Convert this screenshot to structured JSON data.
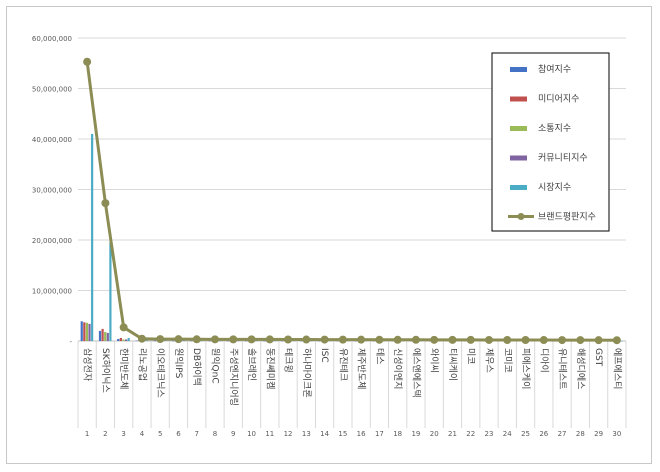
{
  "chart_data": {
    "type": "bar",
    "title": "",
    "xlabel": "",
    "ylabel": "",
    "ylim": [
      0,
      60000000
    ],
    "yticks": [
      "-",
      "10,000,000",
      "20,000,000",
      "30,000,000",
      "40,000,000",
      "50,000,000",
      "60,000,000"
    ],
    "grid": true,
    "legend_position": "top-right",
    "categories": [
      "삼성전자",
      "SK하이닉스",
      "한미반도체",
      "리노공업",
      "이오테크닉스",
      "원익IPS",
      "DB하이텍",
      "원익QnC",
      "주성엔지니어링",
      "솔브레인",
      "동진쎄미켐",
      "테크윙",
      "하나마이크론",
      "ISC",
      "유진테크",
      "제주반도체",
      "테스",
      "신성이엔지",
      "에스앤에스텍",
      "와이씨",
      "티씨케이",
      "미코",
      "제우스",
      "코미코",
      "피에스케이",
      "디아이",
      "유니테스트",
      "해성디에스",
      "GST",
      "에프에스티"
    ],
    "ranks": [
      "1",
      "2",
      "3",
      "4",
      "5",
      "6",
      "7",
      "8",
      "9",
      "10",
      "11",
      "12",
      "13",
      "14",
      "15",
      "16",
      "17",
      "18",
      "19",
      "20",
      "21",
      "22",
      "23",
      "24",
      "25",
      "26",
      "27",
      "28",
      "29",
      "30"
    ],
    "series": [
      {
        "name": "참여지수",
        "color": "#4472C4",
        "kind": "bar",
        "values": [
          3900000,
          2000000,
          400000,
          80000,
          60000,
          50000,
          50000,
          40000,
          40000,
          40000,
          40000,
          40000,
          40000,
          40000,
          40000,
          40000,
          40000,
          40000,
          40000,
          40000,
          40000,
          40000,
          40000,
          40000,
          40000,
          40000,
          40000,
          40000,
          40000,
          40000
        ]
      },
      {
        "name": "미디어지수",
        "color": "#C0504D",
        "kind": "bar",
        "values": [
          3700000,
          2400000,
          600000,
          120000,
          80000,
          70000,
          60000,
          50000,
          50000,
          50000,
          50000,
          50000,
          50000,
          50000,
          50000,
          50000,
          50000,
          50000,
          50000,
          50000,
          50000,
          50000,
          50000,
          50000,
          50000,
          50000,
          50000,
          50000,
          50000,
          50000
        ]
      },
      {
        "name": "소통지수",
        "color": "#9BBB59",
        "kind": "bar",
        "values": [
          3600000,
          1800000,
          300000,
          80000,
          50000,
          50000,
          40000,
          40000,
          40000,
          40000,
          40000,
          40000,
          40000,
          40000,
          40000,
          40000,
          40000,
          40000,
          40000,
          40000,
          40000,
          40000,
          40000,
          40000,
          40000,
          40000,
          40000,
          40000,
          40000,
          40000
        ]
      },
      {
        "name": "커뮤니티지수",
        "color": "#8064A2",
        "kind": "bar",
        "values": [
          3400000,
          1600000,
          300000,
          70000,
          40000,
          40000,
          40000,
          30000,
          30000,
          30000,
          30000,
          30000,
          30000,
          30000,
          30000,
          30000,
          30000,
          30000,
          30000,
          30000,
          30000,
          30000,
          30000,
          30000,
          30000,
          30000,
          30000,
          30000,
          30000,
          30000
        ]
      },
      {
        "name": "시장지수",
        "color": "#4BACC6",
        "kind": "bar",
        "values": [
          41000000,
          19500000,
          600000,
          150000,
          100000,
          80000,
          60000,
          60000,
          60000,
          60000,
          60000,
          50000,
          50000,
          50000,
          50000,
          50000,
          50000,
          50000,
          50000,
          50000,
          50000,
          50000,
          50000,
          50000,
          50000,
          50000,
          50000,
          50000,
          50000,
          50000
        ]
      },
      {
        "name": "브랜드평판지수",
        "color": "#8C8C55",
        "kind": "line",
        "values": [
          55300000,
          27300000,
          2700000,
          450000,
          380000,
          360000,
          340000,
          330000,
          320000,
          320000,
          310000,
          300000,
          290000,
          280000,
          270000,
          260000,
          250000,
          240000,
          240000,
          230000,
          220000,
          220000,
          210000,
          200000,
          200000,
          190000,
          180000,
          180000,
          170000,
          160000
        ]
      }
    ]
  }
}
